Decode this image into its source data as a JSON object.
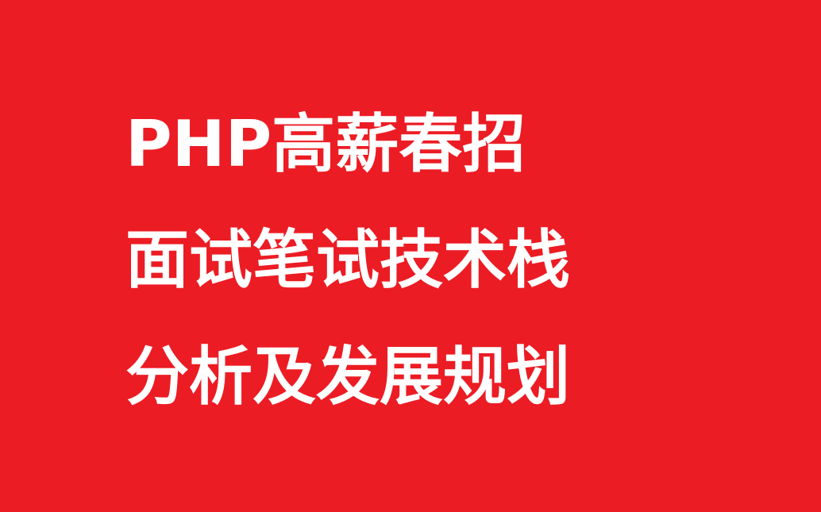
{
  "background_color": "#ec1c24",
  "text_color": "#ffffff",
  "lines": [
    "PHP高薪春招",
    "面试笔试技术栈",
    "分析及发展规划"
  ]
}
